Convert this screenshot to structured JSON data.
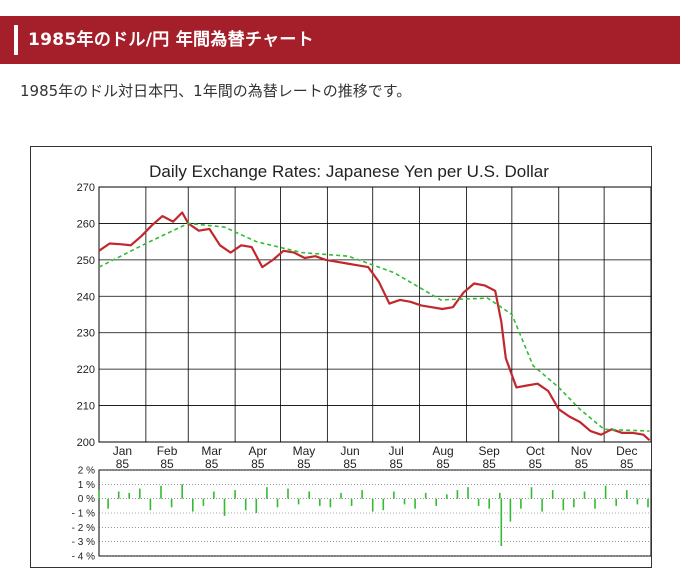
{
  "header": {
    "title": "1985年のドル/円 年間為替チャート"
  },
  "intro": {
    "text": "1985年のドル対日本円、1年間の為替レートの推移です。"
  },
  "colors": {
    "header_bg": "#a51f2b",
    "line_daily": "#c0282d",
    "line_average": "#33bb33",
    "bars": "#33bb33"
  },
  "chart_data": [
    {
      "type": "line",
      "title": "Daily Exchange Rates: Japanese Yen per U.S. Dollar",
      "x_ticks": [
        "Jan\n85",
        "Feb\n85",
        "Mar\n85",
        "Apr\n85",
        "May\n85",
        "Jun\n85",
        "Jul\n85",
        "Aug\n85",
        "Sep\n85",
        "Oct\n85",
        "Nov\n85",
        "Dec\n85"
      ],
      "ylim": [
        200,
        270
      ],
      "y_ticks": [
        "270",
        "260",
        "250",
        "240",
        "230",
        "220",
        "210",
        "200"
      ],
      "grid": true,
      "series": [
        {
          "style": "solid",
          "x": [
            "1985-01-01",
            "1985-01-08",
            "1985-01-15",
            "1985-01-22",
            "1985-01-29",
            "1985-02-05",
            "1985-02-12",
            "1985-02-19",
            "1985-02-25",
            "1985-03-01",
            "1985-03-08",
            "1985-03-15",
            "1985-03-22",
            "1985-03-29",
            "1985-04-05",
            "1985-04-12",
            "1985-04-19",
            "1985-04-26",
            "1985-05-03",
            "1985-05-10",
            "1985-05-17",
            "1985-05-24",
            "1985-05-31",
            "1985-06-07",
            "1985-06-14",
            "1985-06-21",
            "1985-06-28",
            "1985-07-05",
            "1985-07-12",
            "1985-07-19",
            "1985-07-26",
            "1985-08-02",
            "1985-08-09",
            "1985-08-16",
            "1985-08-23",
            "1985-08-30",
            "1985-09-06",
            "1985-09-13",
            "1985-09-20",
            "1985-09-24",
            "1985-09-27",
            "1985-10-04",
            "1985-10-11",
            "1985-10-18",
            "1985-10-25",
            "1985-11-01",
            "1985-11-08",
            "1985-11-15",
            "1985-11-22",
            "1985-11-29",
            "1985-12-06",
            "1985-12-13",
            "1985-12-20",
            "1985-12-27",
            "1985-12-31"
          ],
          "y": [
            252.5,
            254.5,
            254.3,
            254.0,
            256.5,
            259.5,
            262.0,
            260.5,
            263.0,
            260.0,
            258.0,
            258.5,
            254.0,
            252.0,
            254.0,
            253.5,
            248.0,
            250.0,
            252.5,
            252.0,
            250.5,
            251.0,
            250.0,
            249.5,
            249.0,
            248.5,
            248.0,
            244.0,
            238.0,
            239.0,
            238.5,
            237.5,
            237.0,
            236.5,
            237.0,
            241.0,
            243.5,
            243.0,
            241.5,
            233.0,
            223.0,
            215.0,
            215.5,
            216.0,
            214.0,
            209.0,
            207.0,
            205.5,
            203.0,
            202.0,
            203.5,
            202.5,
            202.5,
            202.0,
            200.5
          ]
        },
        {
          "style": "dashed",
          "x": [
            "1985-01-01",
            "1985-02-01",
            "1985-03-01",
            "1985-03-25",
            "1985-04-15",
            "1985-05-15",
            "1985-06-15",
            "1985-07-15",
            "1985-08-15",
            "1985-09-15",
            "1985-10-01",
            "1985-10-15",
            "1985-11-01",
            "1985-11-15",
            "1985-12-01",
            "1985-12-31"
          ],
          "y": [
            248.0,
            254.5,
            260.0,
            259.0,
            255.0,
            252.0,
            251.0,
            246.5,
            239.0,
            239.5,
            235.0,
            221.0,
            215.0,
            209.0,
            203.5,
            203.0
          ]
        }
      ]
    },
    {
      "type": "bar",
      "ylim": [
        -4,
        2
      ],
      "y_ticks": [
        "2 %",
        "1 %",
        "0 %",
        "- 1 %",
        "- 2 %",
        "- 3 %",
        "- 4 %"
      ],
      "x": [
        "1985-01-01",
        "1985-01-07",
        "1985-01-14",
        "1985-01-21",
        "1985-01-28",
        "1985-02-04",
        "1985-02-11",
        "1985-02-18",
        "1985-02-25",
        "1985-03-04",
        "1985-03-11",
        "1985-03-18",
        "1985-03-25",
        "1985-04-01",
        "1985-04-08",
        "1985-04-15",
        "1985-04-22",
        "1985-04-29",
        "1985-05-06",
        "1985-05-13",
        "1985-05-20",
        "1985-05-27",
        "1985-06-03",
        "1985-06-10",
        "1985-06-17",
        "1985-06-24",
        "1985-07-01",
        "1985-07-08",
        "1985-07-15",
        "1985-07-22",
        "1985-07-29",
        "1985-08-05",
        "1985-08-12",
        "1985-08-19",
        "1985-08-26",
        "1985-09-02",
        "1985-09-09",
        "1985-09-16",
        "1985-09-23",
        "1985-09-24",
        "1985-09-30",
        "1985-10-07",
        "1985-10-14",
        "1985-10-21",
        "1985-10-28",
        "1985-11-04",
        "1985-11-11",
        "1985-11-18",
        "1985-11-25",
        "1985-12-02",
        "1985-12-09",
        "1985-12-16",
        "1985-12-23",
        "1985-12-30"
      ],
      "values": [
        0.6,
        -0.7,
        0.5,
        0.4,
        0.7,
        -0.8,
        0.9,
        -0.6,
        1.0,
        -0.9,
        -0.5,
        0.5,
        -1.2,
        0.6,
        -0.8,
        -1.0,
        0.8,
        -0.6,
        0.7,
        -0.4,
        0.5,
        -0.5,
        -0.6,
        0.4,
        -0.5,
        0.6,
        -0.9,
        -0.8,
        0.5,
        -0.4,
        -0.7,
        0.4,
        -0.5,
        0.3,
        0.6,
        0.8,
        -0.5,
        -0.7,
        0.4,
        -3.3,
        -1.6,
        -0.7,
        0.8,
        -0.9,
        0.6,
        -0.8,
        -0.6,
        0.5,
        -0.7,
        0.9,
        -0.5,
        0.6,
        -0.4,
        -0.6
      ]
    }
  ]
}
